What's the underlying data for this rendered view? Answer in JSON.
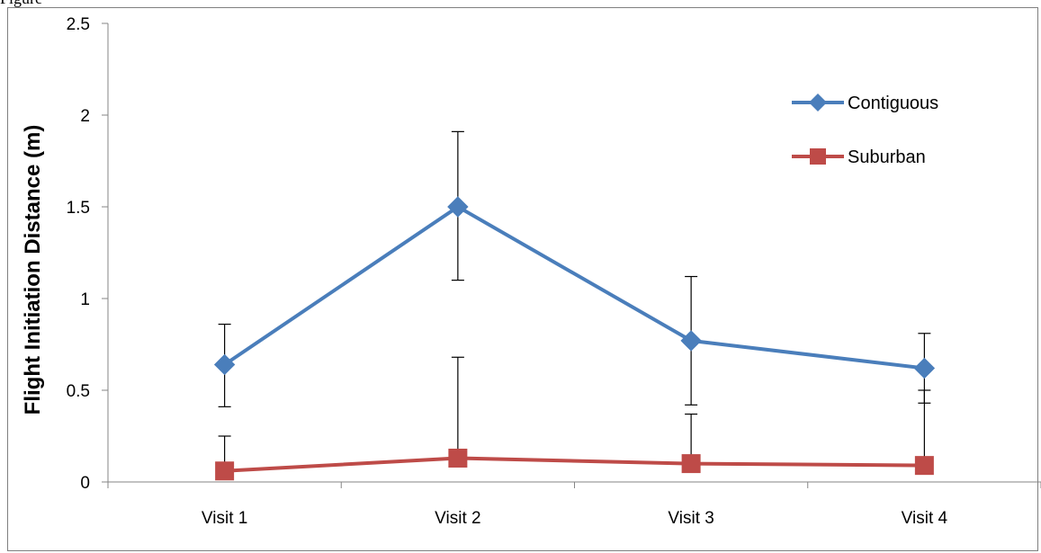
{
  "header": {
    "clipped_caption": "Figure"
  },
  "colors": {
    "contiguous": "#4a7ebb",
    "suburban": "#be4b48",
    "axis": "#868686",
    "error_bar": "#000000"
  },
  "chart_data": {
    "type": "line",
    "title": "",
    "xlabel": "",
    "ylabel": "Flight Initiation Distance (m)",
    "categories": [
      "Visit 1",
      "Visit 2",
      "Visit 3",
      "Visit 4"
    ],
    "ylim": [
      0,
      2.5
    ],
    "yticks": [
      "0",
      "0.5",
      "1",
      "1.5",
      "2",
      "2.5"
    ],
    "ytick_values": [
      0,
      0.5,
      1,
      1.5,
      2,
      2.5
    ],
    "grid": false,
    "legend_position": "top-right",
    "series": [
      {
        "name": "Contiguous",
        "marker": "diamond",
        "values": [
          0.64,
          1.5,
          0.77,
          0.62
        ],
        "error_upper": [
          0.86,
          1.91,
          1.12,
          0.81
        ],
        "error_lower": [
          0.41,
          1.1,
          0.42,
          0.43
        ]
      },
      {
        "name": "Suburban",
        "marker": "square",
        "values": [
          0.06,
          0.13,
          0.1,
          0.09
        ],
        "error_upper": [
          0.25,
          0.68,
          0.37,
          0.5
        ],
        "error_lower": null
      }
    ]
  }
}
